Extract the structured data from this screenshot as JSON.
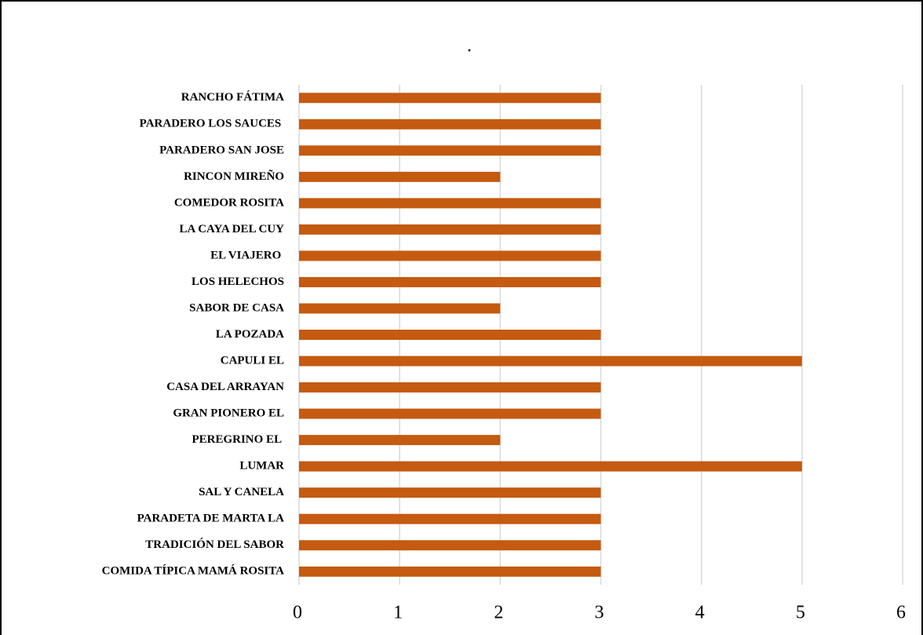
{
  "chart_data": {
    "type": "bar",
    "orientation": "horizontal",
    "title": ".",
    "categories": [
      "RANCHO FÁTIMA",
      "PARADERO LOS SAUCES ",
      "PARADERO SAN JOSE",
      "RINCON MIREÑO",
      "COMEDOR ROSITA",
      "LA CAYA DEL CUY",
      "EL VIAJERO ",
      "LOS HELECHOS",
      "SABOR DE CASA",
      "LA POZADA",
      "CAPULI EL",
      "CASA DEL ARRAYAN",
      "GRAN PIONERO EL",
      "PEREGRINO EL ",
      "LUMAR",
      "SAL Y CANELA",
      "PARADETA DE MARTA LA",
      "TRADICIÓN DEL SABOR",
      "COMIDA TÍPICA MAMÁ ROSITA"
    ],
    "values": [
      3,
      3,
      3,
      2,
      3,
      3,
      3,
      3,
      2,
      3,
      5,
      3,
      3,
      2,
      5,
      3,
      3,
      3,
      3
    ],
    "color": "#c55a11",
    "xlim": [
      0,
      6
    ],
    "xticks": [
      0,
      1,
      2,
      3,
      4,
      5,
      6
    ],
    "grid": true
  }
}
